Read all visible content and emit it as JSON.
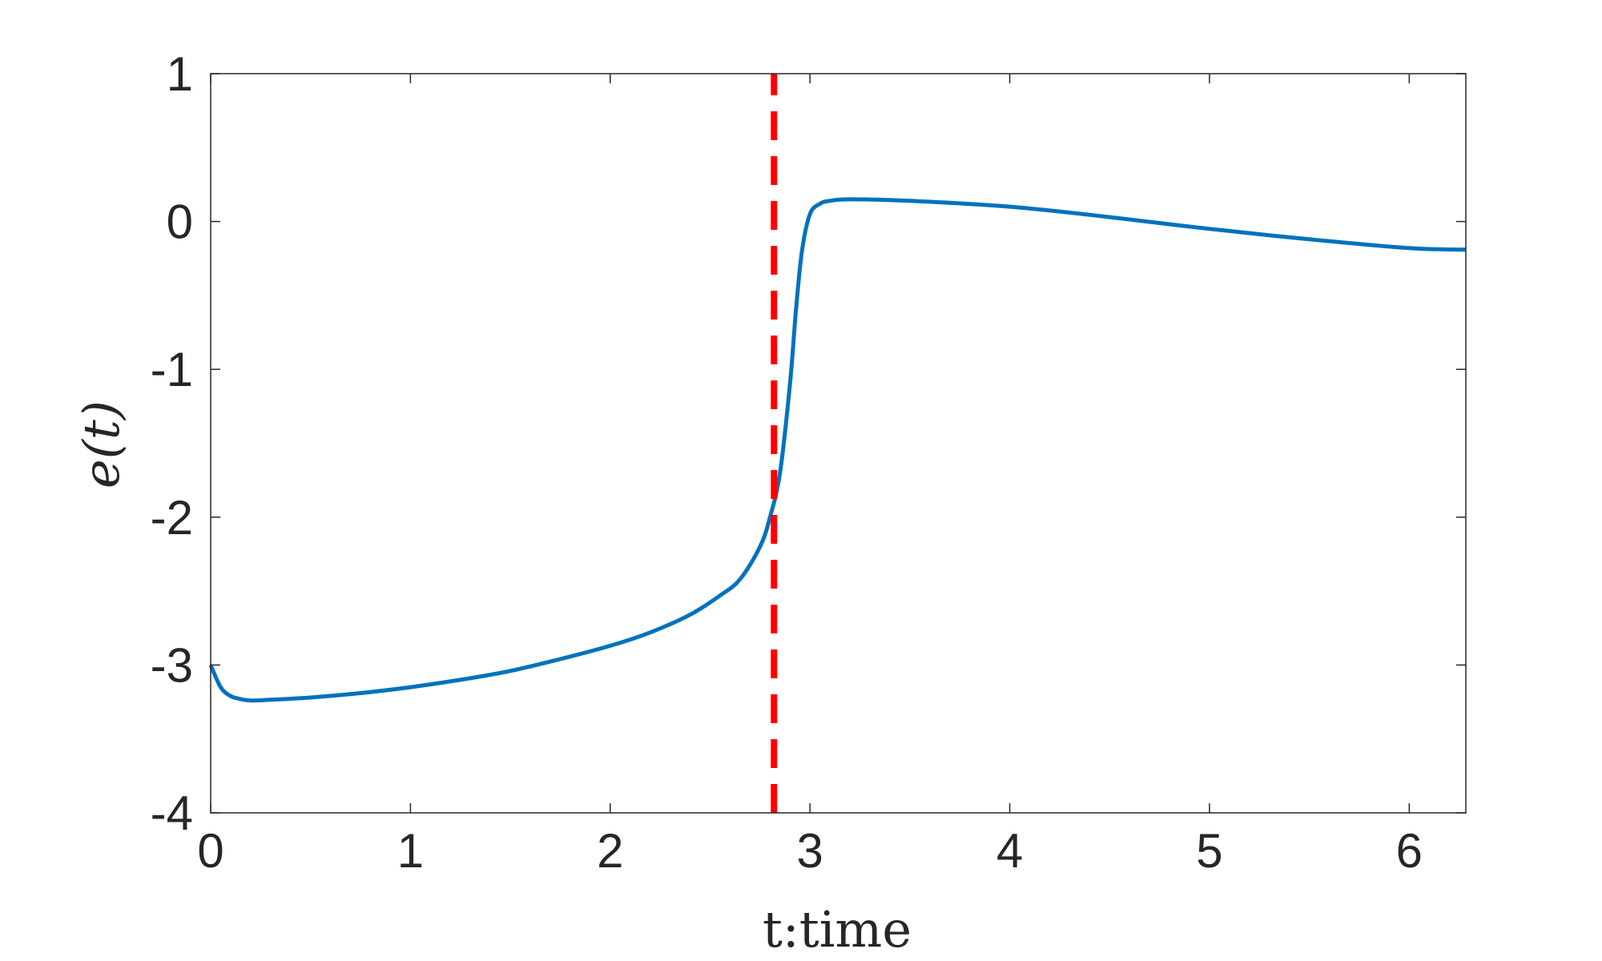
{
  "chart_data": {
    "type": "line",
    "title": "",
    "xlabel": "t:time",
    "ylabel": "e(t)",
    "xlim": [
      0,
      6.2832
    ],
    "ylim": [
      -4,
      1
    ],
    "xticks": [
      0,
      1,
      2,
      3,
      4,
      5,
      6
    ],
    "xtick_labels": [
      "0",
      "1",
      "2",
      "3",
      "4",
      "5",
      "6"
    ],
    "yticks": [
      -4,
      -3,
      -2,
      -1,
      0,
      1
    ],
    "ytick_labels": [
      "-4",
      "-3",
      "-2",
      "-1",
      "0",
      "1"
    ],
    "grid": false,
    "series": [
      {
        "color": "#0072BD",
        "style": "solid",
        "x": [
          0,
          0.05,
          0.1,
          0.15,
          0.2,
          0.3,
          0.5,
          0.75,
          1.0,
          1.25,
          1.5,
          1.75,
          2.0,
          2.2,
          2.4,
          2.55,
          2.65,
          2.75,
          2.8,
          2.85,
          2.9,
          2.93,
          2.96,
          3.0,
          3.05,
          3.1,
          3.2,
          3.5,
          4.0,
          4.5,
          5.0,
          5.5,
          6.0,
          6.2832
        ],
        "y": [
          -3.0,
          -3.15,
          -3.21,
          -3.23,
          -3.24,
          -3.235,
          -3.22,
          -3.19,
          -3.15,
          -3.1,
          -3.04,
          -2.96,
          -2.87,
          -2.78,
          -2.66,
          -2.53,
          -2.42,
          -2.2,
          -2.0,
          -1.7,
          -1.1,
          -0.6,
          -0.2,
          0.05,
          0.12,
          0.14,
          0.15,
          0.14,
          0.1,
          0.03,
          -0.05,
          -0.12,
          -0.18,
          -0.19
        ]
      },
      {
        "color": "#FF0000",
        "style": "dashed",
        "x": [
          2.82,
          2.82
        ],
        "y": [
          -4,
          1
        ]
      }
    ]
  }
}
